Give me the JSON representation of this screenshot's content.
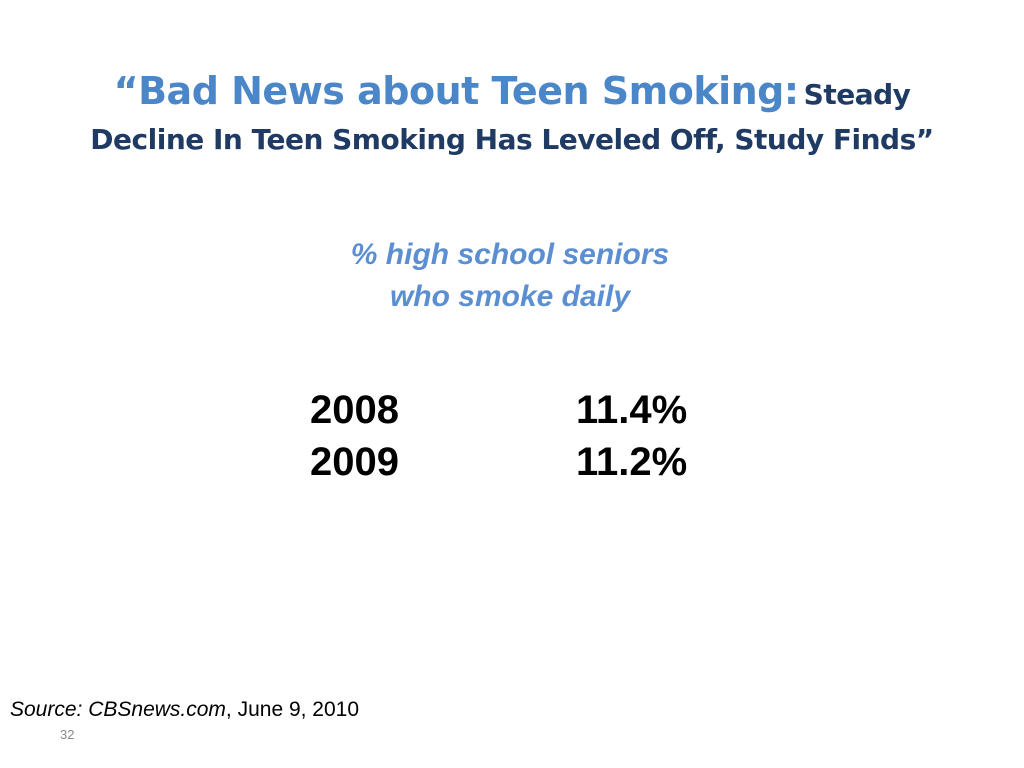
{
  "title": {
    "open_quote": "“",
    "main": "Bad News about Teen Smoking:",
    "sub_part1": "Steady",
    "sub_part2": "Decline In Teen Smoking Has Leveled Off, Study Finds",
    "close_quote": "”"
  },
  "subtitle": {
    "line1": "% high school seniors",
    "line2": "who smoke daily"
  },
  "table": {
    "rows": [
      {
        "year": "2008",
        "value": "11.4%"
      },
      {
        "year": "2009",
        "value": "11.2%"
      }
    ]
  },
  "source": {
    "label": "Source:  CBSnews.com",
    "date": ", June 9, 2010"
  },
  "page_number": "32",
  "colors": {
    "title_blue": "#4a86c8",
    "title_navy": "#1f3b64",
    "subtitle_blue": "#5b8fd1"
  }
}
